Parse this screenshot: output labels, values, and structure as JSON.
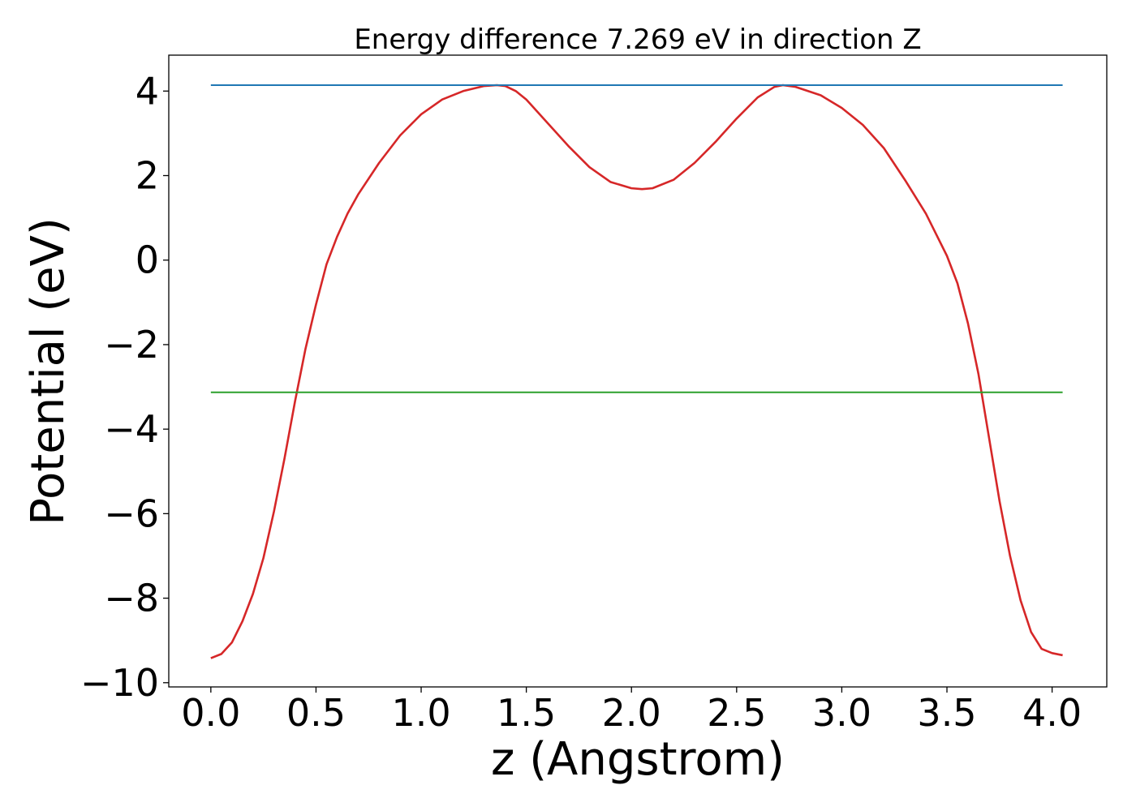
{
  "chart_data": {
    "type": "line",
    "title": "Energy difference 7.269 eV in direction Z",
    "xlabel": "z (Angstrom)",
    "ylabel": "Potential (eV)",
    "xlim": [
      -0.2,
      4.26
    ],
    "ylim": [
      -10.1,
      4.85
    ],
    "xticks": [
      0.0,
      0.5,
      1.0,
      1.5,
      2.0,
      2.5,
      3.0,
      3.5,
      4.0
    ],
    "xtick_labels": [
      "0.0",
      "0.5",
      "1.0",
      "1.5",
      "2.0",
      "2.5",
      "3.0",
      "3.5",
      "4.0"
    ],
    "yticks": [
      -10,
      -8,
      -6,
      -4,
      -2,
      0,
      2,
      4
    ],
    "ytick_labels": [
      "−10",
      "−8",
      "−6",
      "−4",
      "−2",
      "0",
      "2",
      "4"
    ],
    "grid": false,
    "series": [
      {
        "color": "#d62728",
        "x": [
          0.0,
          0.05,
          0.1,
          0.15,
          0.2,
          0.25,
          0.3,
          0.35,
          0.4,
          0.45,
          0.5,
          0.55,
          0.6,
          0.65,
          0.7,
          0.8,
          0.9,
          1.0,
          1.1,
          1.2,
          1.3,
          1.36,
          1.4,
          1.45,
          1.5,
          1.6,
          1.7,
          1.8,
          1.9,
          2.0,
          2.05,
          2.1,
          2.2,
          2.3,
          2.4,
          2.5,
          2.6,
          2.68,
          2.72,
          2.78,
          2.9,
          3.0,
          3.1,
          3.2,
          3.3,
          3.4,
          3.5,
          3.55,
          3.6,
          3.65,
          3.7,
          3.75,
          3.8,
          3.85,
          3.9,
          3.95,
          4.0,
          4.05
        ],
        "y": [
          -9.42,
          -9.32,
          -9.05,
          -8.55,
          -7.9,
          -7.05,
          -5.95,
          -4.7,
          -3.35,
          -2.1,
          -1.05,
          -0.1,
          0.55,
          1.1,
          1.55,
          2.3,
          2.95,
          3.45,
          3.8,
          4.0,
          4.12,
          4.14,
          4.12,
          4.0,
          3.8,
          3.25,
          2.7,
          2.2,
          1.85,
          1.7,
          1.68,
          1.7,
          1.9,
          2.3,
          2.8,
          3.35,
          3.85,
          4.1,
          4.14,
          4.1,
          3.9,
          3.6,
          3.2,
          2.65,
          1.9,
          1.1,
          0.1,
          -0.55,
          -1.5,
          -2.7,
          -4.2,
          -5.7,
          -7.0,
          -8.05,
          -8.8,
          -9.2,
          -9.3,
          -9.35
        ]
      },
      {
        "color": "#1f77b4",
        "x": [
          0.0,
          4.05
        ],
        "y": [
          4.14,
          4.14
        ]
      },
      {
        "color": "#2ca02c",
        "x": [
          0.0,
          4.05
        ],
        "y": [
          -3.13,
          -3.13
        ]
      }
    ]
  }
}
